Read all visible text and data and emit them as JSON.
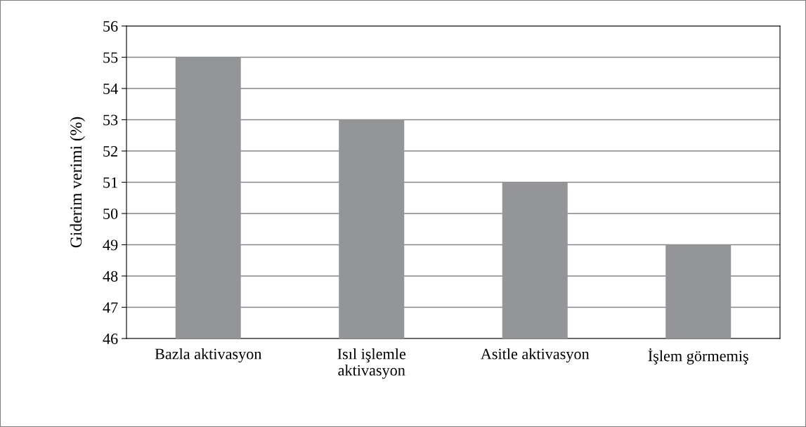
{
  "chart_data": {
    "type": "bar",
    "ylabel": "Giderim verimi (%)",
    "categories": [
      "Bazla aktivasyon",
      "Isıl işlemle\naktivasyon",
      "Asitle aktivasyon",
      "İşlem görmemiş"
    ],
    "values": [
      55,
      53,
      51,
      49
    ],
    "color": "#939598",
    "ylim": [
      46,
      56
    ],
    "yticks": [
      46,
      47,
      48,
      49,
      50,
      51,
      52,
      53,
      54,
      55,
      56
    ],
    "grid": "y",
    "legend": false
  }
}
